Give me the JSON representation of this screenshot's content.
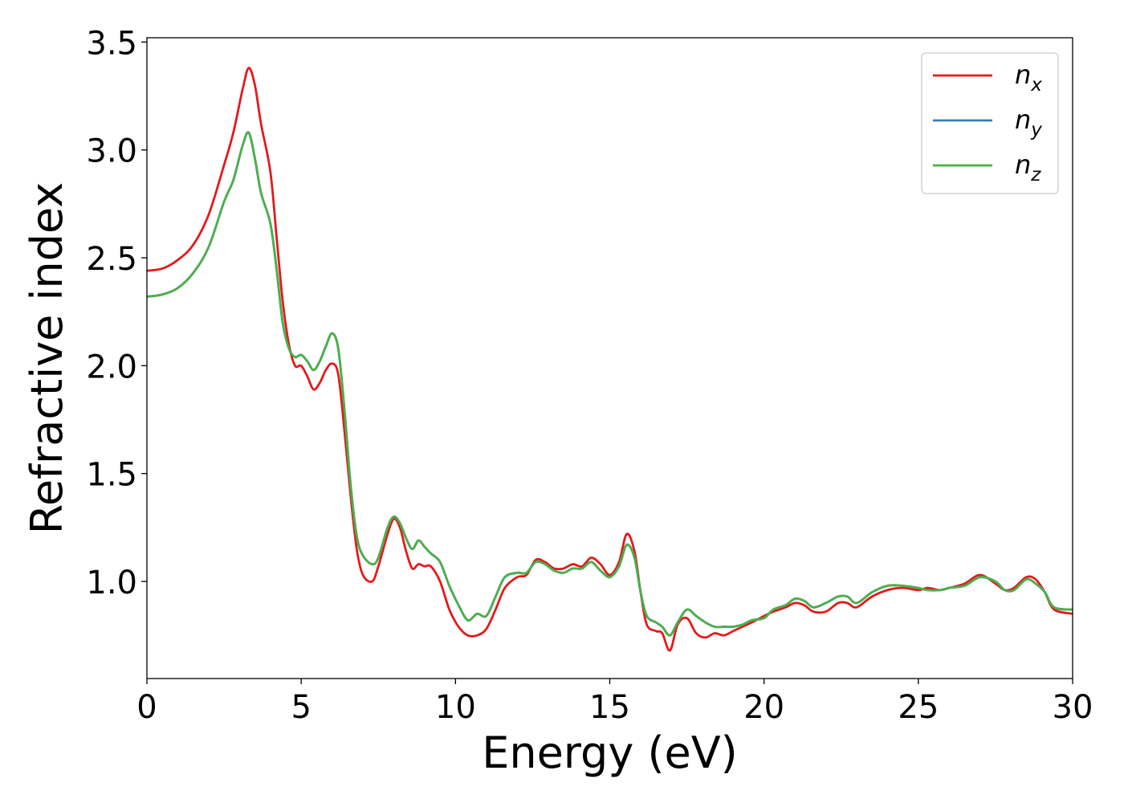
{
  "chart_data": {
    "type": "line",
    "title": "",
    "xlabel": "Energy (eV)",
    "ylabel": "Refractive index",
    "xlim": [
      0,
      30
    ],
    "ylim": [
      0.55,
      3.52
    ],
    "xticks": [
      0,
      5,
      10,
      15,
      20,
      25,
      30
    ],
    "yticks": [
      1.0,
      1.5,
      2.0,
      2.5,
      3.0,
      3.5
    ],
    "xtick_labels": [
      "0",
      "5",
      "10",
      "15",
      "20",
      "25",
      "30"
    ],
    "ytick_labels": [
      "1.0",
      "1.5",
      "2.0",
      "2.5",
      "3.0",
      "3.5"
    ],
    "grid": false,
    "legend": {
      "placement": "top-right",
      "entries": [
        {
          "base": "n",
          "sub": "x",
          "color": "#e31a1c"
        },
        {
          "base": "n",
          "sub": "y",
          "color": "#377eb8"
        },
        {
          "base": "n",
          "sub": "z",
          "color": "#4daf4a"
        }
      ]
    },
    "series": [
      {
        "name": "n_x",
        "color": "#e31a1c",
        "x": [
          0,
          0.5,
          1.0,
          1.5,
          2.0,
          2.5,
          2.8,
          3.1,
          3.3,
          3.5,
          3.7,
          4.0,
          4.2,
          4.4,
          4.6,
          4.8,
          5.0,
          5.2,
          5.4,
          5.6,
          5.8,
          6.0,
          6.2,
          6.4,
          6.6,
          6.8,
          7.0,
          7.3,
          7.5,
          7.8,
          8.0,
          8.2,
          8.4,
          8.6,
          8.8,
          9.0,
          9.2,
          9.5,
          9.8,
          10.1,
          10.4,
          10.7,
          11.0,
          11.3,
          11.6,
          12.0,
          12.3,
          12.6,
          12.9,
          13.2,
          13.5,
          13.8,
          14.1,
          14.4,
          14.7,
          15.0,
          15.3,
          15.55,
          15.8,
          16.0,
          16.2,
          16.5,
          16.7,
          16.95,
          17.2,
          17.5,
          17.8,
          18.1,
          18.4,
          18.7,
          19.0,
          19.3,
          19.6,
          20.0,
          20.3,
          20.7,
          21.0,
          21.3,
          21.6,
          22.0,
          22.4,
          22.7,
          23.0,
          23.5,
          24.0,
          24.5,
          25.0,
          25.3,
          25.7,
          26.0,
          26.5,
          27.0,
          27.5,
          27.8,
          28.1,
          28.5,
          28.8,
          29.1,
          29.4,
          30.0
        ],
        "y": [
          2.44,
          2.45,
          2.49,
          2.56,
          2.7,
          2.93,
          3.08,
          3.28,
          3.38,
          3.3,
          3.12,
          2.9,
          2.6,
          2.3,
          2.1,
          2.0,
          2.0,
          1.95,
          1.89,
          1.92,
          1.98,
          2.01,
          1.96,
          1.7,
          1.4,
          1.15,
          1.03,
          1.0,
          1.07,
          1.22,
          1.29,
          1.25,
          1.14,
          1.06,
          1.08,
          1.07,
          1.07,
          1.0,
          0.87,
          0.79,
          0.75,
          0.75,
          0.78,
          0.87,
          0.97,
          1.02,
          1.03,
          1.1,
          1.09,
          1.06,
          1.06,
          1.08,
          1.07,
          1.11,
          1.08,
          1.03,
          1.09,
          1.22,
          1.14,
          0.95,
          0.8,
          0.77,
          0.76,
          0.68,
          0.8,
          0.83,
          0.76,
          0.74,
          0.76,
          0.75,
          0.77,
          0.79,
          0.81,
          0.84,
          0.86,
          0.88,
          0.9,
          0.89,
          0.86,
          0.86,
          0.9,
          0.9,
          0.88,
          0.93,
          0.96,
          0.97,
          0.96,
          0.97,
          0.96,
          0.97,
          0.99,
          1.03,
          0.99,
          0.96,
          0.97,
          1.02,
          1.01,
          0.95,
          0.87,
          0.85
        ]
      },
      {
        "name": "n_y",
        "color": "#377eb8",
        "x": [
          0,
          0.5,
          1.0,
          1.5,
          2.0,
          2.5,
          2.8,
          3.1,
          3.3,
          3.5,
          3.7,
          4.0,
          4.2,
          4.4,
          4.6,
          4.8,
          5.0,
          5.2,
          5.4,
          5.6,
          5.8,
          6.0,
          6.2,
          6.4,
          6.6,
          6.8,
          7.0,
          7.3,
          7.5,
          7.8,
          8.0,
          8.2,
          8.4,
          8.6,
          8.8,
          9.0,
          9.2,
          9.5,
          9.8,
          10.1,
          10.4,
          10.7,
          11.0,
          11.3,
          11.6,
          12.0,
          12.3,
          12.6,
          12.9,
          13.2,
          13.5,
          13.8,
          14.1,
          14.4,
          14.7,
          15.0,
          15.3,
          15.55,
          15.8,
          16.0,
          16.2,
          16.5,
          16.7,
          16.95,
          17.2,
          17.5,
          17.8,
          18.1,
          18.4,
          18.7,
          19.0,
          19.3,
          19.6,
          20.0,
          20.3,
          20.7,
          21.0,
          21.3,
          21.6,
          22.0,
          22.4,
          22.7,
          23.0,
          23.5,
          24.0,
          24.5,
          25.0,
          25.3,
          25.7,
          26.0,
          26.5,
          27.0,
          27.5,
          27.8,
          28.1,
          28.5,
          28.8,
          29.1,
          29.4,
          30.0
        ],
        "y": [
          2.32,
          2.33,
          2.36,
          2.43,
          2.55,
          2.76,
          2.86,
          3.02,
          3.08,
          2.96,
          2.8,
          2.66,
          2.45,
          2.2,
          2.08,
          2.04,
          2.05,
          2.02,
          1.98,
          2.02,
          2.09,
          2.15,
          2.08,
          1.8,
          1.45,
          1.21,
          1.12,
          1.08,
          1.11,
          1.25,
          1.3,
          1.27,
          1.2,
          1.15,
          1.19,
          1.16,
          1.13,
          1.09,
          0.98,
          0.89,
          0.82,
          0.85,
          0.84,
          0.93,
          1.02,
          1.04,
          1.04,
          1.09,
          1.08,
          1.05,
          1.04,
          1.06,
          1.06,
          1.09,
          1.05,
          1.02,
          1.07,
          1.17,
          1.11,
          0.95,
          0.84,
          0.81,
          0.79,
          0.75,
          0.81,
          0.87,
          0.84,
          0.81,
          0.79,
          0.79,
          0.79,
          0.8,
          0.82,
          0.83,
          0.87,
          0.89,
          0.92,
          0.91,
          0.88,
          0.9,
          0.93,
          0.93,
          0.9,
          0.95,
          0.98,
          0.98,
          0.97,
          0.96,
          0.96,
          0.97,
          0.98,
          1.02,
          1.0,
          0.96,
          0.96,
          1.01,
          0.99,
          0.95,
          0.88,
          0.87
        ]
      },
      {
        "name": "n_z",
        "color": "#4daf4a",
        "x": [
          0,
          0.5,
          1.0,
          1.5,
          2.0,
          2.5,
          2.8,
          3.1,
          3.3,
          3.5,
          3.7,
          4.0,
          4.2,
          4.4,
          4.6,
          4.8,
          5.0,
          5.2,
          5.4,
          5.6,
          5.8,
          6.0,
          6.2,
          6.4,
          6.6,
          6.8,
          7.0,
          7.3,
          7.5,
          7.8,
          8.0,
          8.2,
          8.4,
          8.6,
          8.8,
          9.0,
          9.2,
          9.5,
          9.8,
          10.1,
          10.4,
          10.7,
          11.0,
          11.3,
          11.6,
          12.0,
          12.3,
          12.6,
          12.9,
          13.2,
          13.5,
          13.8,
          14.1,
          14.4,
          14.7,
          15.0,
          15.3,
          15.55,
          15.8,
          16.0,
          16.2,
          16.5,
          16.7,
          16.95,
          17.2,
          17.5,
          17.8,
          18.1,
          18.4,
          18.7,
          19.0,
          19.3,
          19.6,
          20.0,
          20.3,
          20.7,
          21.0,
          21.3,
          21.6,
          22.0,
          22.4,
          22.7,
          23.0,
          23.5,
          24.0,
          24.5,
          25.0,
          25.3,
          25.7,
          26.0,
          26.5,
          27.0,
          27.5,
          27.8,
          28.1,
          28.5,
          28.8,
          29.1,
          29.4,
          30.0
        ],
        "y": [
          2.32,
          2.33,
          2.36,
          2.43,
          2.55,
          2.76,
          2.86,
          3.02,
          3.08,
          2.96,
          2.8,
          2.66,
          2.45,
          2.2,
          2.08,
          2.04,
          2.05,
          2.02,
          1.98,
          2.02,
          2.09,
          2.15,
          2.08,
          1.8,
          1.45,
          1.21,
          1.12,
          1.08,
          1.11,
          1.25,
          1.3,
          1.27,
          1.2,
          1.15,
          1.19,
          1.16,
          1.13,
          1.09,
          0.98,
          0.89,
          0.82,
          0.85,
          0.84,
          0.93,
          1.02,
          1.04,
          1.04,
          1.09,
          1.08,
          1.05,
          1.04,
          1.06,
          1.06,
          1.09,
          1.05,
          1.02,
          1.07,
          1.17,
          1.11,
          0.95,
          0.84,
          0.81,
          0.79,
          0.75,
          0.81,
          0.87,
          0.84,
          0.81,
          0.79,
          0.79,
          0.79,
          0.8,
          0.82,
          0.83,
          0.87,
          0.89,
          0.92,
          0.91,
          0.88,
          0.9,
          0.93,
          0.93,
          0.9,
          0.95,
          0.98,
          0.98,
          0.97,
          0.96,
          0.96,
          0.97,
          0.98,
          1.02,
          1.0,
          0.96,
          0.96,
          1.01,
          0.99,
          0.95,
          0.88,
          0.87
        ]
      }
    ]
  }
}
